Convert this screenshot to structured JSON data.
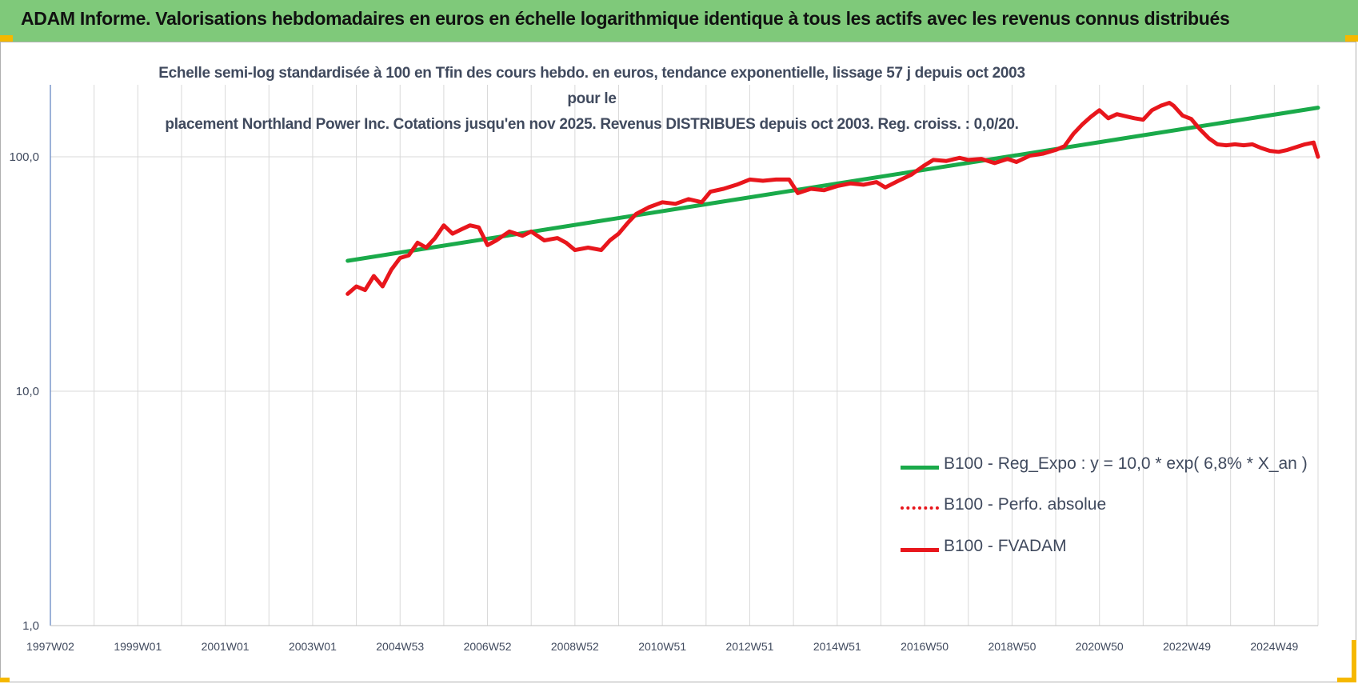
{
  "banner": {
    "title": "ADAM Informe. Valorisations hebdomadaires en euros en échelle logarithmique identique à tous les actifs avec les revenus connus distribués"
  },
  "colors": {
    "banner_bg": "#7fc97a",
    "trend": "#1aaa4a",
    "fvadam": "#e8161c",
    "perfo": "#e8161c",
    "corner": "#f5b800"
  },
  "chart_data": {
    "type": "line",
    "title_lines": [
      "Echelle semi-log standardisée à 100 en Tfin des cours hebdo. en euros, tendance exponentielle, lissage 57 j depuis oct 2003 pour le",
      "placement Northland Power Inc. Cotations jusqu'en nov 2025. Revenus DISTRIBUES depuis oct 2003. Reg. croiss. : 0,0/20."
    ],
    "y_scale": "log",
    "ylim": [
      1,
      200
    ],
    "xlim": [
      1997.0,
      2026.0
    ],
    "y_ticks": [
      {
        "value": 1,
        "label": "1,0"
      },
      {
        "value": 10,
        "label": "10,0"
      },
      {
        "value": 100,
        "label": "100,0"
      }
    ],
    "x_ticks": [
      {
        "x": 1997.0,
        "label": "1997W02"
      },
      {
        "x": 1999.0,
        "label": "1999W01"
      },
      {
        "x": 2001.0,
        "label": "2001W01"
      },
      {
        "x": 2003.0,
        "label": "2003W01"
      },
      {
        "x": 2005.0,
        "label": "2004W53"
      },
      {
        "x": 2007.0,
        "label": "2006W52"
      },
      {
        "x": 2009.0,
        "label": "2008W52"
      },
      {
        "x": 2011.0,
        "label": "2010W51"
      },
      {
        "x": 2013.0,
        "label": "2012W51"
      },
      {
        "x": 2015.0,
        "label": "2014W51"
      },
      {
        "x": 2017.0,
        "label": "2016W50"
      },
      {
        "x": 2019.0,
        "label": "2018W50"
      },
      {
        "x": 2021.0,
        "label": "2020W50"
      },
      {
        "x": 2023.0,
        "label": "2022W49"
      },
      {
        "x": 2025.0,
        "label": "2024W49"
      }
    ],
    "grid": "vertical",
    "legend_position": "bottom-right",
    "series": [
      {
        "name": "B100 - Reg_Expo : y = 10,0 * exp( 6,8% *  X_an )",
        "style": "solid-thick",
        "color": "#1aaa4a",
        "points": [
          [
            2003.8,
            36.0
          ],
          [
            2026.0,
            162.0
          ]
        ]
      },
      {
        "name": "B100 - Perfo. absolue",
        "style": "dotted",
        "color": "#e8161c",
        "points": []
      },
      {
        "name": "B100 - FVADAM",
        "style": "solid-thick",
        "color": "#e8161c",
        "points": [
          [
            2003.8,
            26
          ],
          [
            2004.0,
            28
          ],
          [
            2004.2,
            27
          ],
          [
            2004.4,
            31
          ],
          [
            2004.6,
            28
          ],
          [
            2004.8,
            33
          ],
          [
            2005.0,
            37
          ],
          [
            2005.2,
            38
          ],
          [
            2005.4,
            43
          ],
          [
            2005.6,
            41
          ],
          [
            2005.8,
            45
          ],
          [
            2006.0,
            51
          ],
          [
            2006.2,
            47
          ],
          [
            2006.4,
            49
          ],
          [
            2006.6,
            51
          ],
          [
            2006.8,
            50
          ],
          [
            2007.0,
            42
          ],
          [
            2007.2,
            44
          ],
          [
            2007.5,
            48
          ],
          [
            2007.8,
            46
          ],
          [
            2008.0,
            48
          ],
          [
            2008.3,
            44
          ],
          [
            2008.6,
            45
          ],
          [
            2008.8,
            43
          ],
          [
            2009.0,
            40
          ],
          [
            2009.3,
            41
          ],
          [
            2009.6,
            40
          ],
          [
            2009.8,
            44
          ],
          [
            2010.0,
            47
          ],
          [
            2010.2,
            52
          ],
          [
            2010.4,
            57
          ],
          [
            2010.7,
            61
          ],
          [
            2011.0,
            64
          ],
          [
            2011.3,
            63
          ],
          [
            2011.6,
            66
          ],
          [
            2011.9,
            64
          ],
          [
            2012.1,
            71
          ],
          [
            2012.4,
            73
          ],
          [
            2012.7,
            76
          ],
          [
            2013.0,
            80
          ],
          [
            2013.3,
            79
          ],
          [
            2013.6,
            80
          ],
          [
            2013.9,
            80
          ],
          [
            2014.1,
            70
          ],
          [
            2014.4,
            73
          ],
          [
            2014.7,
            72
          ],
          [
            2015.0,
            75
          ],
          [
            2015.3,
            77
          ],
          [
            2015.6,
            76
          ],
          [
            2015.9,
            78
          ],
          [
            2016.1,
            74
          ],
          [
            2016.4,
            79
          ],
          [
            2016.7,
            84
          ],
          [
            2017.0,
            92
          ],
          [
            2017.2,
            97
          ],
          [
            2017.5,
            96
          ],
          [
            2017.8,
            99
          ],
          [
            2018.0,
            97
          ],
          [
            2018.3,
            98
          ],
          [
            2018.6,
            94
          ],
          [
            2018.9,
            98
          ],
          [
            2019.1,
            95
          ],
          [
            2019.4,
            101
          ],
          [
            2019.7,
            103
          ],
          [
            2020.0,
            107
          ],
          [
            2020.2,
            111
          ],
          [
            2020.4,
            125
          ],
          [
            2020.6,
            137
          ],
          [
            2020.8,
            148
          ],
          [
            2021.0,
            158
          ],
          [
            2021.2,
            146
          ],
          [
            2021.4,
            152
          ],
          [
            2021.6,
            149
          ],
          [
            2021.8,
            146
          ],
          [
            2022.0,
            144
          ],
          [
            2022.2,
            158
          ],
          [
            2022.4,
            165
          ],
          [
            2022.6,
            170
          ],
          [
            2022.7,
            165
          ],
          [
            2022.9,
            150
          ],
          [
            2023.1,
            145
          ],
          [
            2023.3,
            131
          ],
          [
            2023.5,
            120
          ],
          [
            2023.7,
            113
          ],
          [
            2023.9,
            112
          ],
          [
            2024.1,
            113
          ],
          [
            2024.3,
            112
          ],
          [
            2024.5,
            113
          ],
          [
            2024.7,
            109
          ],
          [
            2024.9,
            106
          ],
          [
            2025.1,
            105
          ],
          [
            2025.3,
            107
          ],
          [
            2025.5,
            110
          ],
          [
            2025.7,
            113
          ],
          [
            2025.9,
            115
          ],
          [
            2026.0,
            100
          ]
        ]
      }
    ]
  }
}
